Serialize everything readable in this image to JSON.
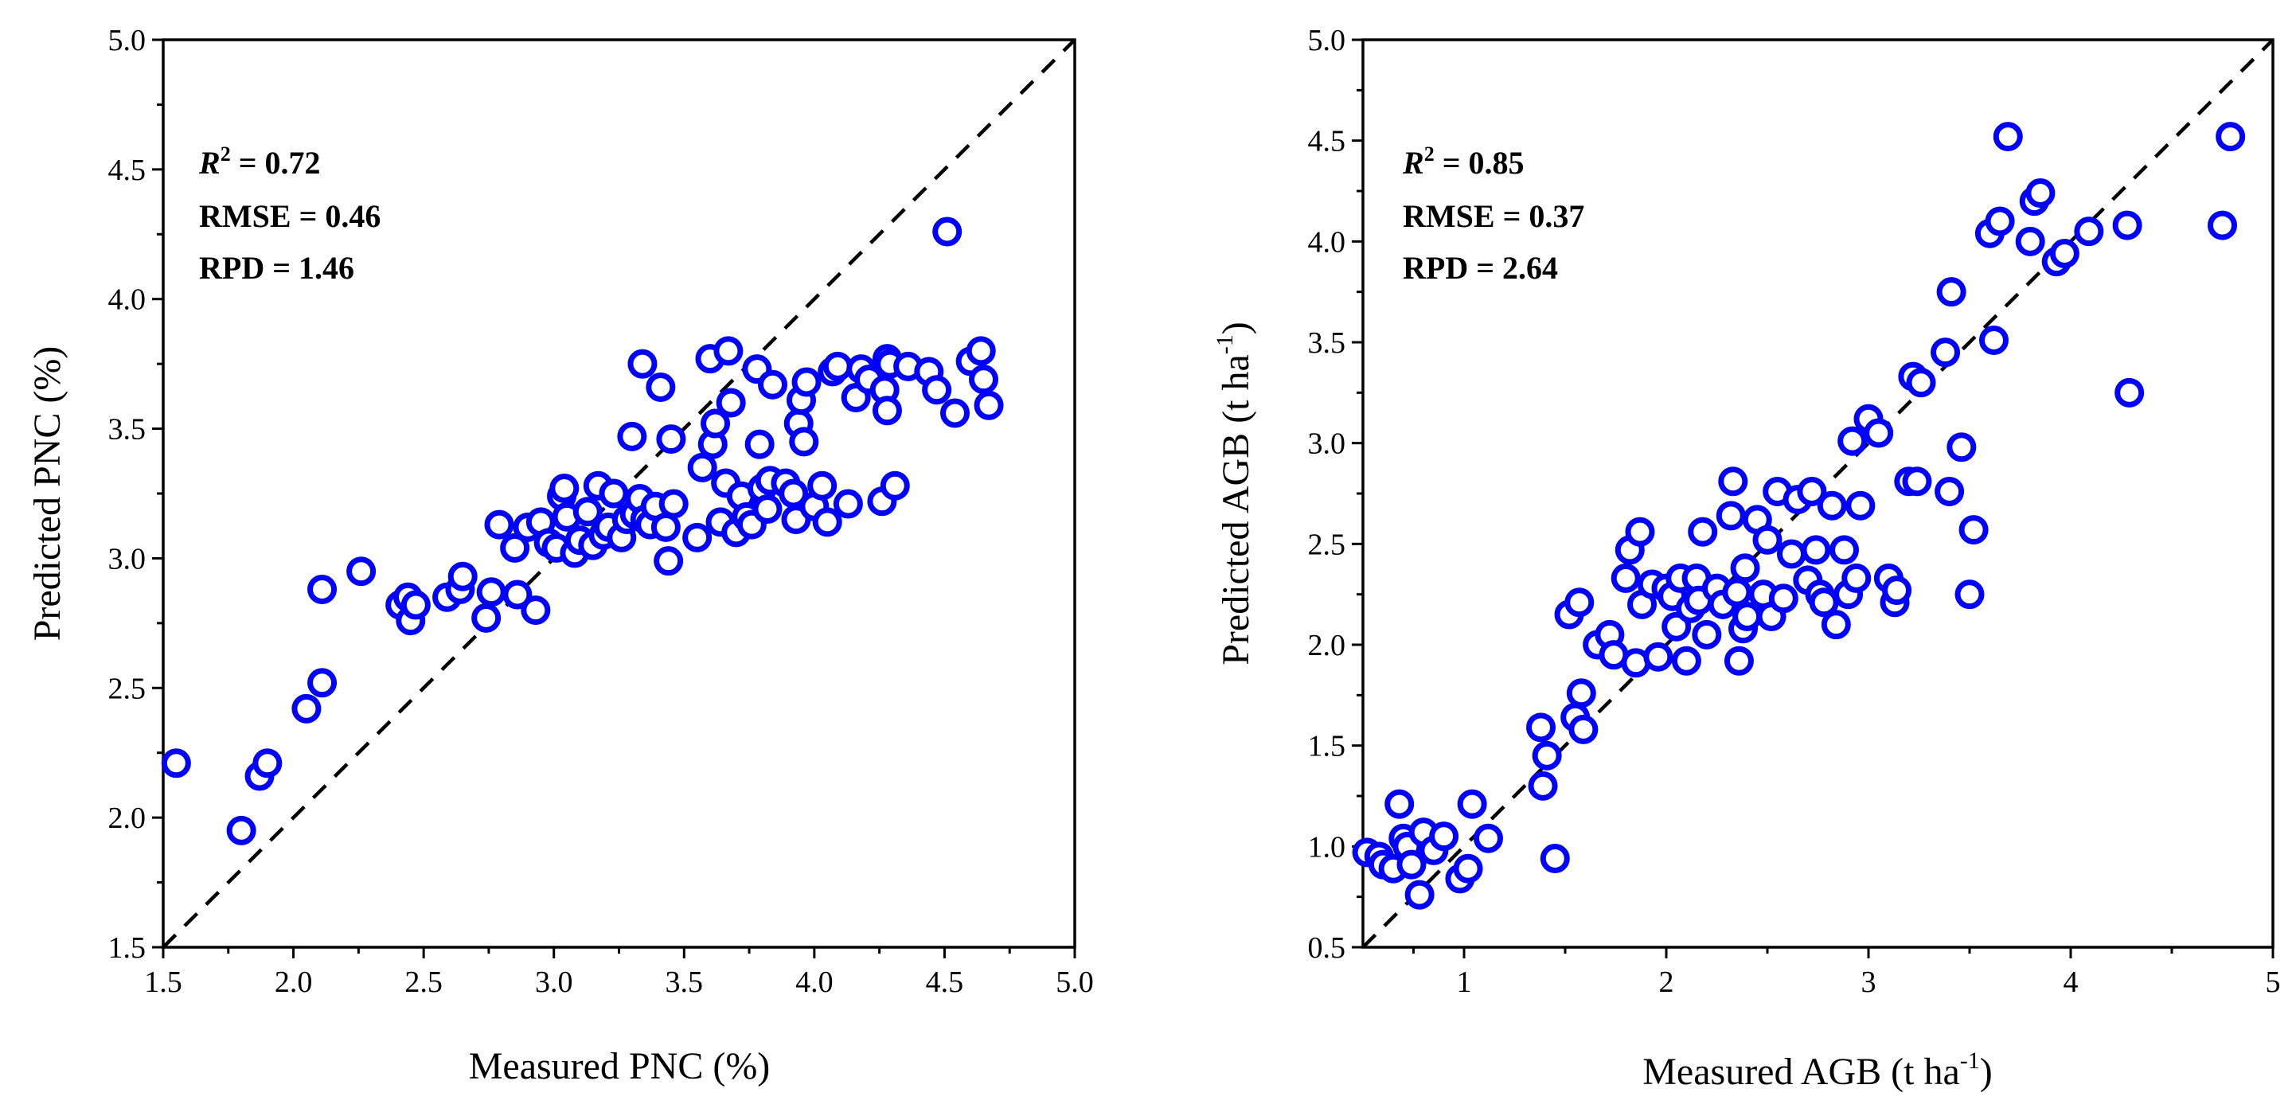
{
  "chart_data": [
    {
      "type": "scatter",
      "xlabel": "Measured PNC (%)",
      "ylabel": "Predicted PNC (%)",
      "xlim": [
        1.5,
        5.0
      ],
      "ylim": [
        1.5,
        5.0
      ],
      "xticks": [
        1.5,
        2.0,
        2.5,
        3.0,
        3.5,
        4.0,
        4.5,
        5.0
      ],
      "yticks": [
        1.5,
        2.0,
        2.5,
        3.0,
        3.5,
        4.0,
        4.5,
        5.0
      ],
      "tick_labels_x": [
        "1.5",
        "2.0",
        "2.5",
        "3.0",
        "3.5",
        "4.0",
        "4.5",
        "5.0"
      ],
      "tick_labels_y": [
        "1.5",
        "2.0",
        "2.5",
        "3.0",
        "3.5",
        "4.0",
        "4.5",
        "5.0"
      ],
      "stats": {
        "r2_symbol": "R",
        "r2_sup": "2",
        "r2_value": " = 0.72",
        "rmse": "RMSE = 0.46",
        "rpd": "RPD = 1.46"
      },
      "reference_line": "1:1 dashed",
      "marker": "open circle",
      "marker_color": "#0000ff",
      "points": [
        [
          1.55,
          2.21
        ],
        [
          1.8,
          1.95
        ],
        [
          1.87,
          2.16
        ],
        [
          1.9,
          2.21
        ],
        [
          2.05,
          2.42
        ],
        [
          2.11,
          2.52
        ],
        [
          2.11,
          2.88
        ],
        [
          2.26,
          2.95
        ],
        [
          2.41,
          2.82
        ],
        [
          2.44,
          2.85
        ],
        [
          2.45,
          2.76
        ],
        [
          2.47,
          2.82
        ],
        [
          2.59,
          2.85
        ],
        [
          2.64,
          2.88
        ],
        [
          2.65,
          2.93
        ],
        [
          2.74,
          2.77
        ],
        [
          2.76,
          2.87
        ],
        [
          2.79,
          3.13
        ],
        [
          2.85,
          3.04
        ],
        [
          2.86,
          2.86
        ],
        [
          2.9,
          3.12
        ],
        [
          2.93,
          2.8
        ],
        [
          2.95,
          3.14
        ],
        [
          2.98,
          3.06
        ],
        [
          3.01,
          3.04
        ],
        [
          3.03,
          3.24
        ],
        [
          3.04,
          3.27
        ],
        [
          3.05,
          3.16
        ],
        [
          3.08,
          3.02
        ],
        [
          3.1,
          3.07
        ],
        [
          3.13,
          3.18
        ],
        [
          3.15,
          3.05
        ],
        [
          3.17,
          3.28
        ],
        [
          3.19,
          3.09
        ],
        [
          3.21,
          3.12
        ],
        [
          3.23,
          3.25
        ],
        [
          3.26,
          3.08
        ],
        [
          3.28,
          3.15
        ],
        [
          3.3,
          3.47
        ],
        [
          3.31,
          3.17
        ],
        [
          3.33,
          3.23
        ],
        [
          3.34,
          3.75
        ],
        [
          3.35,
          3.15
        ],
        [
          3.37,
          3.13
        ],
        [
          3.39,
          3.2
        ],
        [
          3.41,
          3.66
        ],
        [
          3.43,
          3.12
        ],
        [
          3.44,
          2.99
        ],
        [
          3.45,
          3.46
        ],
        [
          3.46,
          3.21
        ],
        [
          3.55,
          3.08
        ],
        [
          3.57,
          3.35
        ],
        [
          3.6,
          3.77
        ],
        [
          3.61,
          3.44
        ],
        [
          3.62,
          3.52
        ],
        [
          3.64,
          3.14
        ],
        [
          3.66,
          3.29
        ],
        [
          3.67,
          3.8
        ],
        [
          3.68,
          3.6
        ],
        [
          3.7,
          3.1
        ],
        [
          3.72,
          3.24
        ],
        [
          3.74,
          3.16
        ],
        [
          3.76,
          3.13
        ],
        [
          3.78,
          3.73
        ],
        [
          3.79,
          3.44
        ],
        [
          3.8,
          3.27
        ],
        [
          3.82,
          3.19
        ],
        [
          3.83,
          3.3
        ],
        [
          3.84,
          3.67
        ],
        [
          3.89,
          3.29
        ],
        [
          3.92,
          3.25
        ],
        [
          3.93,
          3.15
        ],
        [
          3.94,
          3.52
        ],
        [
          3.95,
          3.61
        ],
        [
          3.96,
          3.45
        ],
        [
          3.97,
          3.68
        ],
        [
          4.0,
          3.2
        ],
        [
          4.03,
          3.28
        ],
        [
          4.05,
          3.14
        ],
        [
          4.07,
          3.72
        ],
        [
          4.09,
          3.74
        ],
        [
          4.13,
          3.21
        ],
        [
          4.16,
          3.62
        ],
        [
          4.18,
          3.73
        ],
        [
          4.21,
          3.69
        ],
        [
          4.26,
          3.22
        ],
        [
          4.27,
          3.65
        ],
        [
          4.28,
          3.77
        ],
        [
          4.28,
          3.57
        ],
        [
          4.29,
          3.75
        ],
        [
          4.31,
          3.28
        ],
        [
          4.36,
          3.74
        ],
        [
          4.44,
          3.72
        ],
        [
          4.47,
          3.65
        ],
        [
          4.51,
          4.26
        ],
        [
          4.54,
          3.56
        ],
        [
          4.6,
          3.76
        ],
        [
          4.64,
          3.8
        ],
        [
          4.65,
          3.69
        ],
        [
          4.67,
          3.59
        ]
      ]
    },
    {
      "type": "scatter",
      "xlabel_main": "Measured AGB (t ha",
      "xlabel_sup": "-1",
      "xlabel_end": ")",
      "ylabel_main": "Predicted AGB (t ha",
      "ylabel_sup": "-1",
      "ylabel_end": ")",
      "xlim": [
        0.5,
        5.0
      ],
      "ylim": [
        0.5,
        5.0
      ],
      "xticks": [
        1,
        2,
        3,
        4,
        5
      ],
      "yticks": [
        0.5,
        1.0,
        1.5,
        2.0,
        2.5,
        3.0,
        3.5,
        4.0,
        4.5,
        5.0
      ],
      "tick_labels_x": [
        "1",
        "2",
        "3",
        "4",
        "5"
      ],
      "tick_labels_y": [
        "0.5",
        "1.0",
        "1.5",
        "2.0",
        "2.5",
        "3.0",
        "3.5",
        "4.0",
        "4.5",
        "5.0"
      ],
      "stats": {
        "r2_symbol": "R",
        "r2_sup": "2",
        "r2_value": " = 0.85",
        "rmse": "RMSE = 0.37",
        "rpd": "RPD = 2.64"
      },
      "reference_line": "1:1 dashed",
      "marker": "open circle",
      "marker_color": "#0000ff",
      "points": [
        [
          0.52,
          0.97
        ],
        [
          0.58,
          0.95
        ],
        [
          0.6,
          0.91
        ],
        [
          0.65,
          0.89
        ],
        [
          0.68,
          1.21
        ],
        [
          0.7,
          1.04
        ],
        [
          0.72,
          1.0
        ],
        [
          0.74,
          0.91
        ],
        [
          0.78,
          0.76
        ],
        [
          0.8,
          1.07
        ],
        [
          0.85,
          0.98
        ],
        [
          0.9,
          1.05
        ],
        [
          0.98,
          0.84
        ],
        [
          1.02,
          0.89
        ],
        [
          1.04,
          1.21
        ],
        [
          1.12,
          1.04
        ],
        [
          1.38,
          1.59
        ],
        [
          1.39,
          1.3
        ],
        [
          1.41,
          1.45
        ],
        [
          1.45,
          0.94
        ],
        [
          1.52,
          2.15
        ],
        [
          1.55,
          1.64
        ],
        [
          1.57,
          2.21
        ],
        [
          1.58,
          1.76
        ],
        [
          1.59,
          1.58
        ],
        [
          1.66,
          2.0
        ],
        [
          1.72,
          2.05
        ],
        [
          1.74,
          1.95
        ],
        [
          1.8,
          2.33
        ],
        [
          1.82,
          2.47
        ],
        [
          1.85,
          1.91
        ],
        [
          1.87,
          2.56
        ],
        [
          1.88,
          2.2
        ],
        [
          1.93,
          2.3
        ],
        [
          1.96,
          1.94
        ],
        [
          2.0,
          2.28
        ],
        [
          2.03,
          2.24
        ],
        [
          2.05,
          2.09
        ],
        [
          2.07,
          2.33
        ],
        [
          2.1,
          1.92
        ],
        [
          2.12,
          2.18
        ],
        [
          2.15,
          2.33
        ],
        [
          2.16,
          2.22
        ],
        [
          2.18,
          2.56
        ],
        [
          2.2,
          2.05
        ],
        [
          2.25,
          2.28
        ],
        [
          2.28,
          2.2
        ],
        [
          2.32,
          2.64
        ],
        [
          2.33,
          2.81
        ],
        [
          2.35,
          2.26
        ],
        [
          2.36,
          1.92
        ],
        [
          2.38,
          2.08
        ],
        [
          2.39,
          2.38
        ],
        [
          2.4,
          2.14
        ],
        [
          2.45,
          2.62
        ],
        [
          2.48,
          2.25
        ],
        [
          2.5,
          2.52
        ],
        [
          2.52,
          2.14
        ],
        [
          2.55,
          2.76
        ],
        [
          2.58,
          2.23
        ],
        [
          2.62,
          2.45
        ],
        [
          2.65,
          2.72
        ],
        [
          2.7,
          2.32
        ],
        [
          2.72,
          2.76
        ],
        [
          2.74,
          2.47
        ],
        [
          2.76,
          2.25
        ],
        [
          2.78,
          2.21
        ],
        [
          2.82,
          2.69
        ],
        [
          2.84,
          2.1
        ],
        [
          2.88,
          2.47
        ],
        [
          2.9,
          2.25
        ],
        [
          2.92,
          3.01
        ],
        [
          2.94,
          2.33
        ],
        [
          2.96,
          2.69
        ],
        [
          3.0,
          3.12
        ],
        [
          3.05,
          3.05
        ],
        [
          3.1,
          2.33
        ],
        [
          3.13,
          2.21
        ],
        [
          3.14,
          2.27
        ],
        [
          3.2,
          2.81
        ],
        [
          3.22,
          3.33
        ],
        [
          3.24,
          2.81
        ],
        [
          3.26,
          3.3
        ],
        [
          3.38,
          3.45
        ],
        [
          3.4,
          2.76
        ],
        [
          3.41,
          3.75
        ],
        [
          3.46,
          2.98
        ],
        [
          3.5,
          2.25
        ],
        [
          3.52,
          2.57
        ],
        [
          3.6,
          4.04
        ],
        [
          3.62,
          3.51
        ],
        [
          3.65,
          4.1
        ],
        [
          3.69,
          4.52
        ],
        [
          3.8,
          4.0
        ],
        [
          3.82,
          4.2
        ],
        [
          3.85,
          4.24
        ],
        [
          3.93,
          3.9
        ],
        [
          3.97,
          3.94
        ],
        [
          4.09,
          4.05
        ],
        [
          4.28,
          4.08
        ],
        [
          4.29,
          3.25
        ],
        [
          4.75,
          4.08
        ],
        [
          4.79,
          4.52
        ]
      ]
    }
  ]
}
